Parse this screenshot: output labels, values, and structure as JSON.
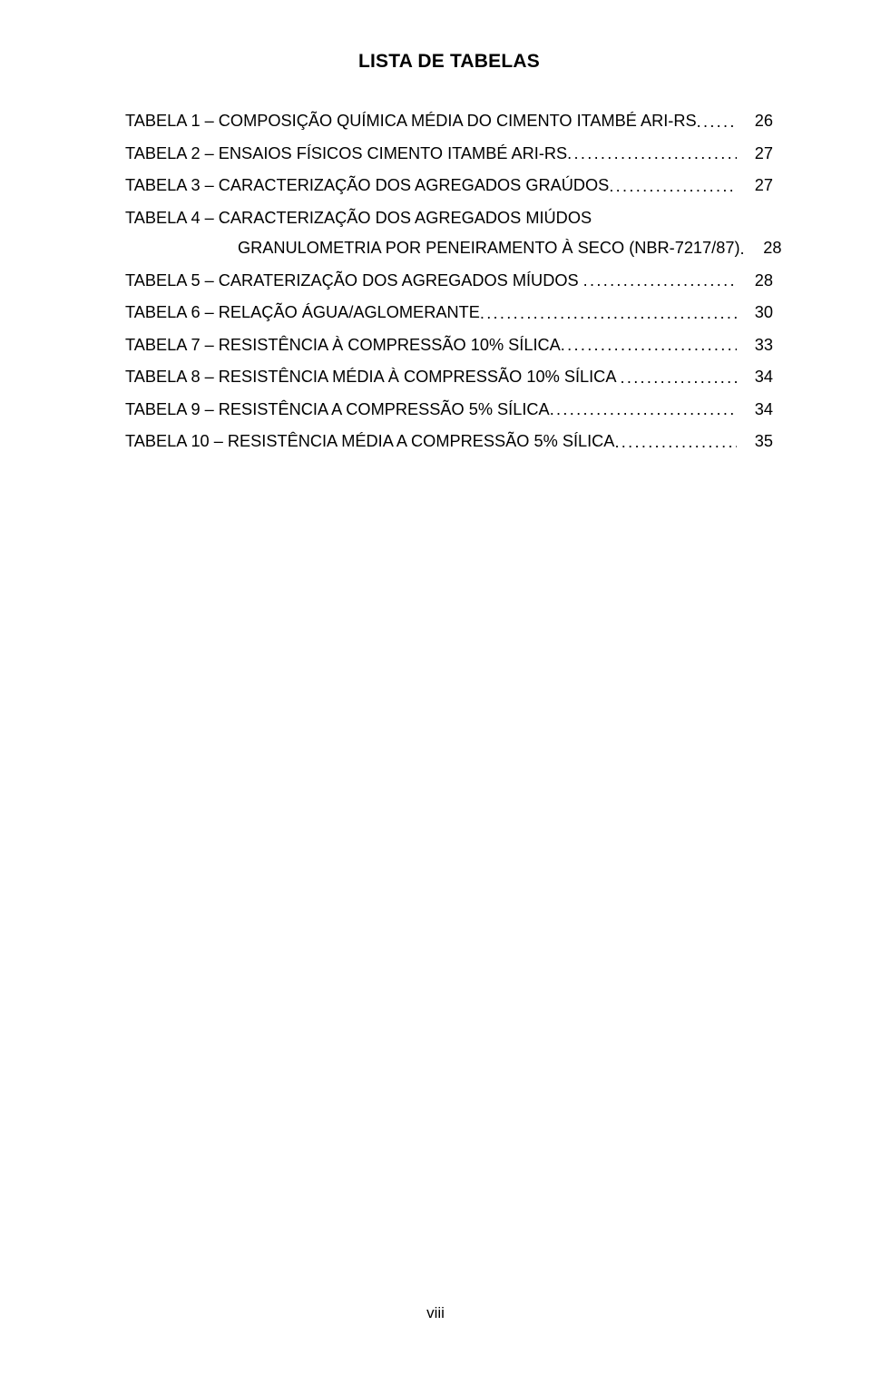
{
  "title": "LISTA DE TABELAS",
  "entries": [
    {
      "label": "TABELA 1 – ",
      "desc": "COMPOSIÇÃO QUÍMICA MÉDIA DO CIMENTO ITAMBÉ ARI-RS",
      "pagenum": "26"
    },
    {
      "label": "TABELA 2 – ",
      "desc": "ENSAIOS FÍSICOS CIMENTO ITAMBÉ ARI-RS",
      "pagenum": "27"
    },
    {
      "label": "TABELA 3 – ",
      "desc": "CARACTERIZAÇÃO DOS AGREGADOS GRAÚDOS",
      "pagenum": "27"
    },
    {
      "label": "TABELA 4 – ",
      "desc": "CARACTERIZAÇÃO DOS AGREGADOS MIÚDOS",
      "pagenum": ""
    },
    {
      "label": "",
      "desc": "GRANULOMETRIA POR PENEIRAMENTO À SECO (NBR-7217/87)",
      "pagenum": "28",
      "continued": true
    },
    {
      "label": "TABELA 5 – ",
      "desc": "CARATERIZAÇÃO DOS AGREGADOS MÍUDOS ",
      "pagenum": "28"
    },
    {
      "label": "TABELA 6 – ",
      "desc": "RELAÇÃO ÁGUA/AGLOMERANTE",
      "pagenum": "30"
    },
    {
      "label": "TABELA 7 – ",
      "desc": "RESISTÊNCIA À COMPRESSÃO 10% SÍLICA",
      "pagenum": "33"
    },
    {
      "label": "TABELA 8 – ",
      "desc": "RESISTÊNCIA MÉDIA À COMPRESSÃO 10% SÍLICA ",
      "pagenum": "34"
    },
    {
      "label": "TABELA 9 – ",
      "desc": "RESISTÊNCIA A COMPRESSÃO 5% SÍLICA",
      "pagenum": "34"
    },
    {
      "label": "TABELA 10 – ",
      "desc": "RESISTÊNCIA MÉDIA A COMPRESSÃO 5% SÍLICA",
      "pagenum": "35"
    }
  ],
  "footer": "viii",
  "style": {
    "background_color": "#ffffff",
    "text_color": "#000000",
    "title_fontsize": 21,
    "body_fontsize": 18.2,
    "footer_fontsize": 17,
    "font_family": "Arial"
  }
}
